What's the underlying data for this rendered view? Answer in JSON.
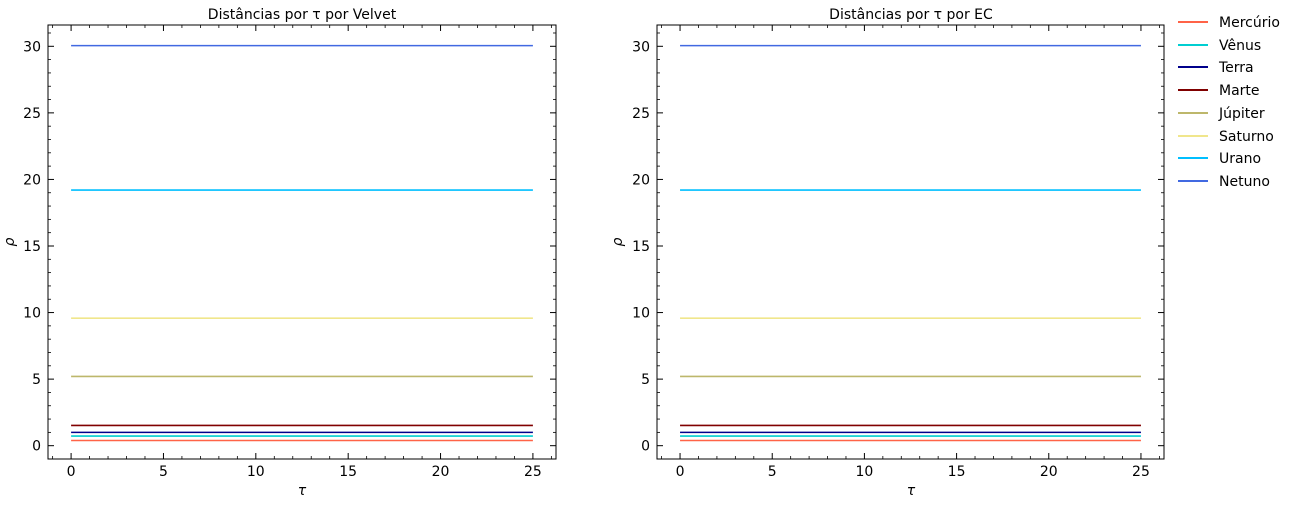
{
  "chart_data": [
    {
      "type": "line",
      "title": "Distâncias por τ por Velvet",
      "xlabel": "τ",
      "ylabel": "ρ",
      "xlim": [
        -1.25,
        26.25
      ],
      "ylim": [
        -1.0,
        31.6
      ],
      "xticks": [
        0,
        5,
        10,
        15,
        20,
        25
      ],
      "xticklabels": [
        "0",
        "5",
        "10",
        "15",
        "20",
        "25"
      ],
      "yticks": [
        0,
        5,
        10,
        15,
        20,
        25,
        30
      ],
      "yticklabels": [
        "0",
        "5",
        "10",
        "15",
        "20",
        "25",
        "30"
      ],
      "grid": false,
      "x": [
        0,
        25
      ],
      "series": [
        {
          "name": "Mercúrio",
          "values": [
            0.39,
            0.39
          ],
          "color": "#ff6347"
        },
        {
          "name": "Vênus",
          "values": [
            0.72,
            0.72
          ],
          "color": "#00ced1"
        },
        {
          "name": "Terra",
          "values": [
            1.0,
            1.0
          ],
          "color": "#00008b"
        },
        {
          "name": "Marte",
          "values": [
            1.52,
            1.52
          ],
          "color": "#800000"
        },
        {
          "name": "Júpiter",
          "values": [
            5.2,
            5.2
          ],
          "color": "#bdb76b"
        },
        {
          "name": "Saturno",
          "values": [
            9.58,
            9.58
          ],
          "color": "#f0e68c"
        },
        {
          "name": "Urano",
          "values": [
            19.2,
            19.2
          ],
          "color": "#00bfff"
        },
        {
          "name": "Netuno",
          "values": [
            30.05,
            30.05
          ],
          "color": "#4169e1"
        }
      ]
    },
    {
      "type": "line",
      "title": "Distâncias por τ por EC",
      "xlabel": "τ",
      "ylabel": "ρ",
      "xlim": [
        -1.25,
        26.25
      ],
      "ylim": [
        -1.0,
        31.6
      ],
      "xticks": [
        0,
        5,
        10,
        15,
        20,
        25
      ],
      "xticklabels": [
        "0",
        "5",
        "10",
        "15",
        "20",
        "25"
      ],
      "yticks": [
        0,
        5,
        10,
        15,
        20,
        25,
        30
      ],
      "yticklabels": [
        "0",
        "5",
        "10",
        "15",
        "20",
        "25",
        "30"
      ],
      "grid": false,
      "x": [
        0,
        25
      ],
      "series": [
        {
          "name": "Mercúrio",
          "values": [
            0.39,
            0.39
          ],
          "color": "#ff6347"
        },
        {
          "name": "Vênus",
          "values": [
            0.72,
            0.72
          ],
          "color": "#00ced1"
        },
        {
          "name": "Terra",
          "values": [
            1.0,
            1.0
          ],
          "color": "#00008b"
        },
        {
          "name": "Marte",
          "values": [
            1.52,
            1.52
          ],
          "color": "#800000"
        },
        {
          "name": "Júpiter",
          "values": [
            5.2,
            5.2
          ],
          "color": "#bdb76b"
        },
        {
          "name": "Saturno",
          "values": [
            9.58,
            9.58
          ],
          "color": "#f0e68c"
        },
        {
          "name": "Urano",
          "values": [
            19.2,
            19.2
          ],
          "color": "#00bfff"
        },
        {
          "name": "Netuno",
          "values": [
            30.05,
            30.05
          ],
          "color": "#4169e1"
        }
      ]
    }
  ],
  "legend": {
    "placement": "outside-right",
    "items": [
      {
        "label": "Mercúrio",
        "color": "#ff6347"
      },
      {
        "label": "Vênus",
        "color": "#00ced1"
      },
      {
        "label": "Terra",
        "color": "#00008b"
      },
      {
        "label": "Marte",
        "color": "#800000"
      },
      {
        "label": "Júpiter",
        "color": "#bdb76b"
      },
      {
        "label": "Saturno",
        "color": "#f0e68c"
      },
      {
        "label": "Urano",
        "color": "#00bfff"
      },
      {
        "label": "Netuno",
        "color": "#4169e1"
      }
    ]
  }
}
